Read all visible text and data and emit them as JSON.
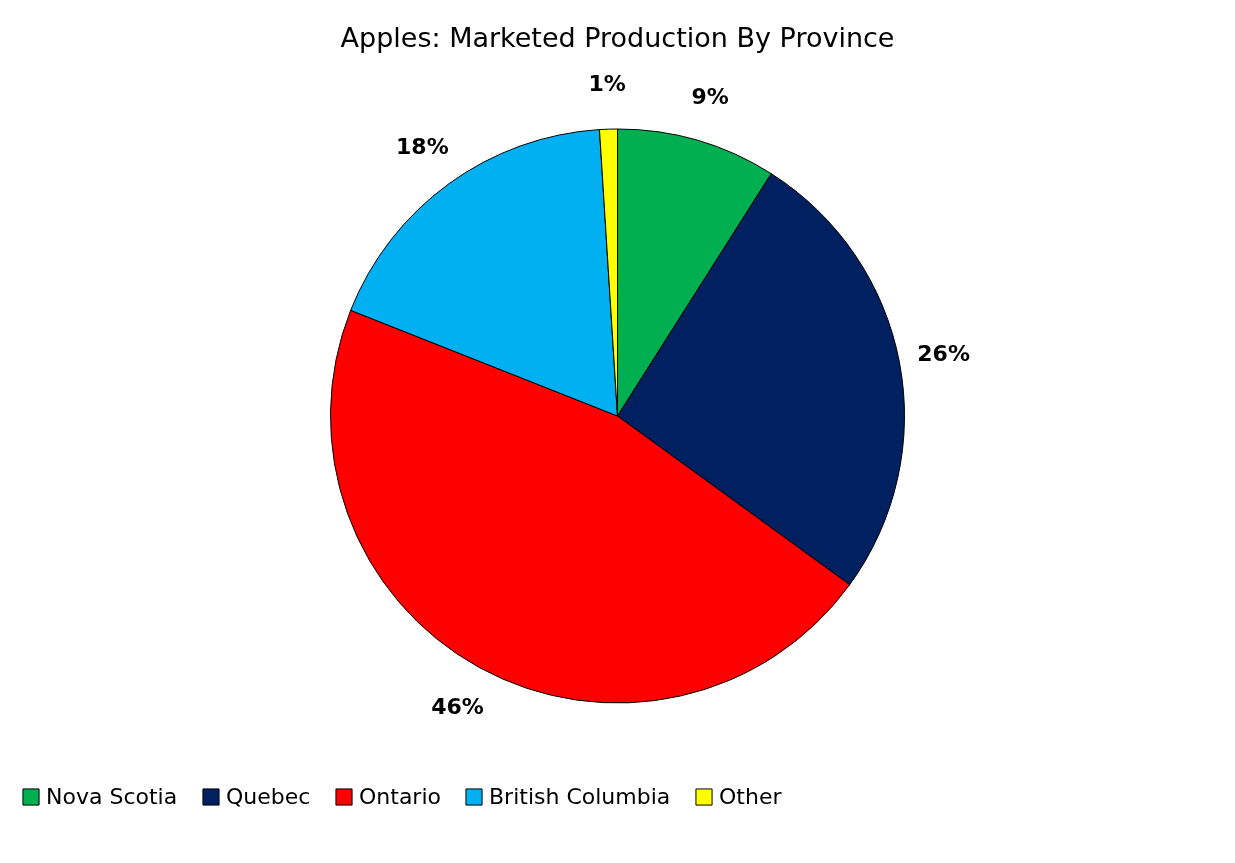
{
  "chart_data": {
    "type": "pie",
    "title": "Apples: Marketed Production By Province",
    "categories": [
      "Nova Scotia",
      "Quebec",
      "Ontario",
      "British Columbia",
      "Other"
    ],
    "values": [
      9,
      26,
      46,
      18,
      1
    ],
    "colors": [
      "#00b050",
      "#002060",
      "#ff0000",
      "#00b0f0",
      "#ffff00"
    ],
    "value_labels": [
      "9%",
      "26%",
      "46%",
      "18%",
      "1%"
    ],
    "legend": "bottom"
  }
}
